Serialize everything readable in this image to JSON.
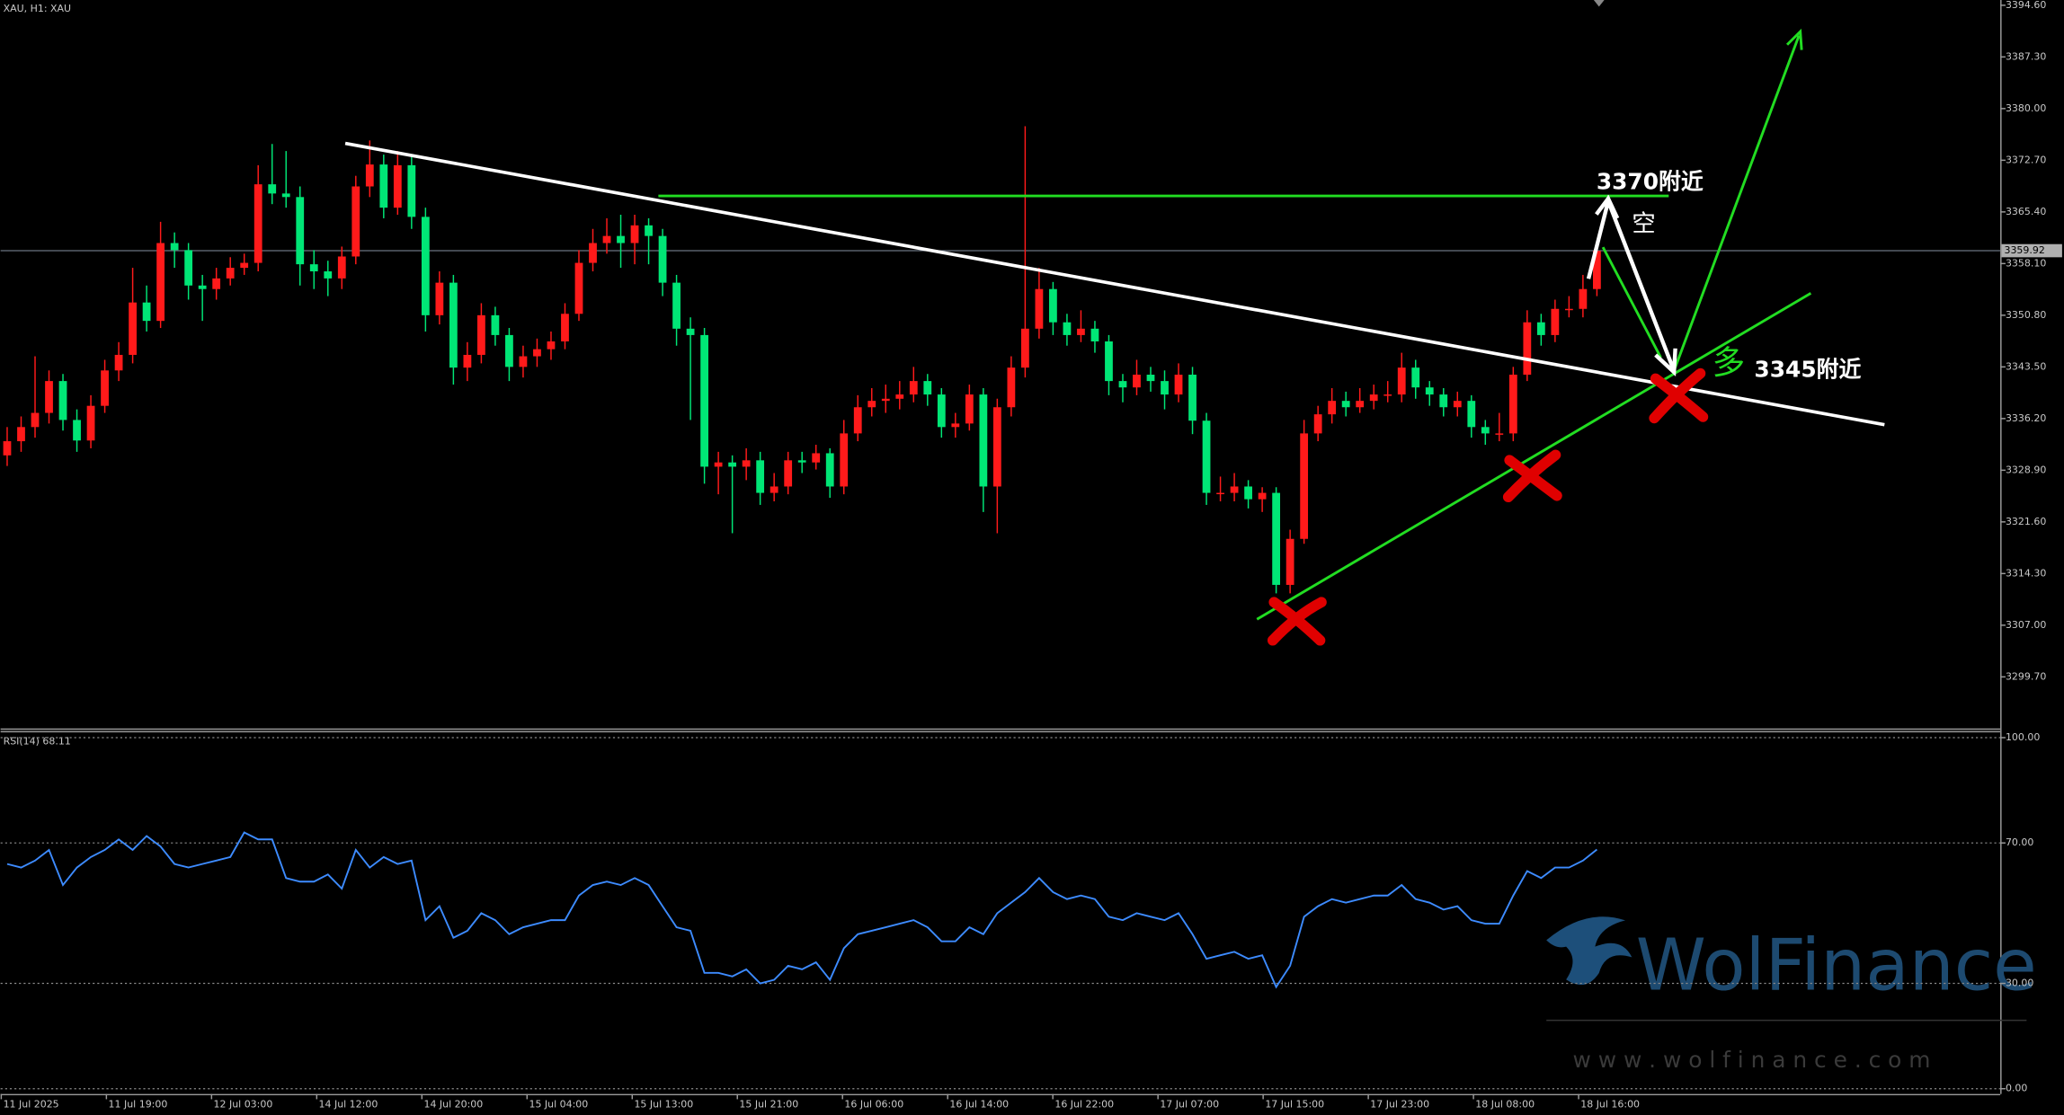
{
  "header": "XAU, H1:  XAU",
  "chart_data": [
    {
      "type": "candlestick",
      "up_color": "#ff1a1a",
      "down_color": "#00e676",
      "ylim": [
        3292.6,
        3394.6
      ],
      "yticks": [
        {
          "value": 3299.7,
          "label": "3299.70"
        },
        {
          "value": 3307.0,
          "label": "3307.00"
        },
        {
          "value": 3314.3,
          "label": "3314.30"
        },
        {
          "value": 3321.6,
          "label": "3321.60"
        },
        {
          "value": 3328.9,
          "label": "3328.90"
        },
        {
          "value": 3336.2,
          "label": "3336.20"
        },
        {
          "value": 3343.5,
          "label": "3343.50"
        },
        {
          "value": 3350.8,
          "label": "3350.80"
        },
        {
          "value": 3358.1,
          "label": "3358.10"
        },
        {
          "value": 3365.4,
          "label": "3365.40"
        },
        {
          "value": 3372.7,
          "label": "3372.70"
        },
        {
          "value": 3380.0,
          "label": "3380.00"
        },
        {
          "value": 3387.3,
          "label": "3387.30"
        },
        {
          "value": 3394.6,
          "label": "3394.60"
        }
      ],
      "last_price": 3359.92,
      "ohlc": [
        [
          3331.0,
          3335.0,
          3329.5,
          3333.0
        ],
        [
          3333.0,
          3336.5,
          3331.5,
          3335.0
        ],
        [
          3335.0,
          3345.0,
          3333.5,
          3337.0
        ],
        [
          3337.0,
          3343.0,
          3335.5,
          3341.5
        ],
        [
          3341.5,
          3342.5,
          3334.5,
          3336.0
        ],
        [
          3336.0,
          3337.5,
          3331.5,
          3333.1
        ],
        [
          3333.1,
          3339.5,
          3332.0,
          3338.0
        ],
        [
          3338.0,
          3344.5,
          3337.0,
          3343.0
        ],
        [
          3343.0,
          3347.0,
          3341.5,
          3345.2
        ],
        [
          3345.2,
          3357.5,
          3344.0,
          3352.6
        ],
        [
          3352.6,
          3355.0,
          3348.5,
          3350.0
        ],
        [
          3350.0,
          3364.0,
          3349.0,
          3361.0
        ],
        [
          3361.0,
          3362.5,
          3357.5,
          3360.0
        ],
        [
          3360.0,
          3361.0,
          3353.0,
          3355.0
        ],
        [
          3355.0,
          3356.5,
          3350.0,
          3354.5
        ],
        [
          3354.5,
          3357.5,
          3353.0,
          3356.0
        ],
        [
          3356.0,
          3359.0,
          3355.0,
          3357.5
        ],
        [
          3357.5,
          3359.5,
          3356.5,
          3358.2
        ],
        [
          3358.2,
          3372.0,
          3357.0,
          3369.3
        ],
        [
          3369.3,
          3375.0,
          3366.5,
          3368.0
        ],
        [
          3368.0,
          3374.0,
          3366.0,
          3367.5
        ],
        [
          3367.5,
          3369.0,
          3355.0,
          3358.0
        ],
        [
          3358.0,
          3360.0,
          3354.5,
          3357.0
        ],
        [
          3357.0,
          3358.5,
          3353.5,
          3356.0
        ],
        [
          3356.0,
          3360.5,
          3354.5,
          3359.1
        ],
        [
          3359.1,
          3370.5,
          3358.0,
          3369.0
        ],
        [
          3369.0,
          3375.5,
          3367.5,
          3372.1
        ],
        [
          3372.1,
          3373.5,
          3364.5,
          3366.0
        ],
        [
          3366.0,
          3374.0,
          3365.0,
          3372.0
        ],
        [
          3372.0,
          3373.5,
          3363.0,
          3364.7
        ],
        [
          3364.7,
          3366.0,
          3348.5,
          3350.8
        ],
        [
          3350.8,
          3357.0,
          3349.5,
          3355.4
        ],
        [
          3355.4,
          3356.5,
          3341.0,
          3343.4
        ],
        [
          3343.4,
          3347.0,
          3341.5,
          3345.2
        ],
        [
          3345.2,
          3352.5,
          3344.0,
          3350.8
        ],
        [
          3350.8,
          3352.0,
          3346.5,
          3348.0
        ],
        [
          3348.0,
          3349.0,
          3341.5,
          3343.5
        ],
        [
          3343.5,
          3346.5,
          3342.0,
          3345.0
        ],
        [
          3345.0,
          3347.5,
          3343.5,
          3346.0
        ],
        [
          3346.0,
          3348.5,
          3344.5,
          3347.1
        ],
        [
          3347.1,
          3352.5,
          3346.0,
          3351.0
        ],
        [
          3351.0,
          3360.0,
          3350.0,
          3358.2
        ],
        [
          3358.2,
          3363.0,
          3357.0,
          3361.0
        ],
        [
          3361.0,
          3364.5,
          3359.5,
          3362.0
        ],
        [
          3362.0,
          3365.0,
          3357.5,
          3361.0
        ],
        [
          3361.0,
          3365.0,
          3358.0,
          3363.5
        ],
        [
          3363.5,
          3364.5,
          3358.0,
          3362.0
        ],
        [
          3362.0,
          3363.0,
          3353.5,
          3355.4
        ],
        [
          3355.4,
          3356.5,
          3346.5,
          3348.9
        ],
        [
          3348.9,
          3350.5,
          3336.0,
          3348.0
        ],
        [
          3348.0,
          3349.0,
          3327.0,
          3329.4
        ],
        [
          3329.4,
          3331.5,
          3325.5,
          3330.0
        ],
        [
          3330.0,
          3331.0,
          3320.0,
          3329.4
        ],
        [
          3329.4,
          3332.0,
          3327.5,
          3330.3
        ],
        [
          3330.3,
          3331.5,
          3324.0,
          3325.7
        ],
        [
          3325.7,
          3328.5,
          3324.5,
          3326.6
        ],
        [
          3326.6,
          3331.5,
          3325.5,
          3330.3
        ],
        [
          3330.3,
          3331.5,
          3328.5,
          3330.0
        ],
        [
          3330.0,
          3332.5,
          3329.0,
          3331.3
        ],
        [
          3331.3,
          3332.0,
          3325.0,
          3326.6
        ],
        [
          3326.6,
          3336.0,
          3325.5,
          3334.1
        ],
        [
          3334.1,
          3339.5,
          3333.0,
          3337.8
        ],
        [
          3337.8,
          3340.5,
          3336.5,
          3338.7
        ],
        [
          3338.7,
          3341.0,
          3337.0,
          3339.0
        ],
        [
          3339.0,
          3341.5,
          3337.5,
          3339.6
        ],
        [
          3339.6,
          3343.5,
          3338.5,
          3341.5
        ],
        [
          3341.5,
          3342.5,
          3338.0,
          3339.6
        ],
        [
          3339.6,
          3340.5,
          3333.5,
          3335.0
        ],
        [
          3335.0,
          3337.0,
          3333.5,
          3335.5
        ],
        [
          3335.5,
          3341.0,
          3334.5,
          3339.6
        ],
        [
          3339.6,
          3340.5,
          3323.0,
          3326.6
        ],
        [
          3326.6,
          3339.0,
          3320.0,
          3337.8
        ],
        [
          3337.8,
          3345.0,
          3336.5,
          3343.4
        ],
        [
          3343.4,
          3377.5,
          3342.0,
          3348.9
        ],
        [
          3348.9,
          3357.5,
          3347.5,
          3354.5
        ],
        [
          3354.5,
          3355.5,
          3348.0,
          3349.8
        ],
        [
          3349.8,
          3351.0,
          3346.5,
          3348.0
        ],
        [
          3348.0,
          3351.5,
          3347.0,
          3348.9
        ],
        [
          3348.9,
          3350.0,
          3345.5,
          3347.1
        ],
        [
          3347.1,
          3348.0,
          3339.5,
          3341.5
        ],
        [
          3341.5,
          3342.5,
          3338.5,
          3340.6
        ],
        [
          3340.6,
          3344.5,
          3339.5,
          3342.4
        ],
        [
          3342.4,
          3343.5,
          3340.0,
          3341.5
        ],
        [
          3341.5,
          3343.0,
          3337.5,
          3339.6
        ],
        [
          3339.6,
          3344.0,
          3338.5,
          3342.4
        ],
        [
          3342.4,
          3343.5,
          3334.0,
          3335.9
        ],
        [
          3335.9,
          3337.0,
          3324.0,
          3325.7
        ],
        [
          3325.7,
          3328.0,
          3324.5,
          3325.7
        ],
        [
          3325.7,
          3328.5,
          3324.5,
          3326.6
        ],
        [
          3326.6,
          3327.5,
          3323.5,
          3324.8
        ],
        [
          3324.8,
          3326.5,
          3323.0,
          3325.7
        ],
        [
          3325.7,
          3326.5,
          3311.5,
          3312.7
        ],
        [
          3312.7,
          3320.5,
          3311.5,
          3319.2
        ],
        [
          3319.2,
          3336.0,
          3318.5,
          3334.1
        ],
        [
          3334.1,
          3338.0,
          3333.0,
          3336.8
        ],
        [
          3336.8,
          3340.5,
          3335.5,
          3338.7
        ],
        [
          3338.7,
          3340.0,
          3336.5,
          3337.8
        ],
        [
          3337.8,
          3340.5,
          3337.0,
          3338.7
        ],
        [
          3338.7,
          3341.0,
          3337.5,
          3339.6
        ],
        [
          3339.6,
          3341.5,
          3338.5,
          3339.6
        ],
        [
          3339.6,
          3345.5,
          3338.5,
          3343.4
        ],
        [
          3343.4,
          3344.5,
          3339.0,
          3340.6
        ],
        [
          3340.6,
          3341.5,
          3338.0,
          3339.6
        ],
        [
          3339.6,
          3340.5,
          3336.5,
          3337.8
        ],
        [
          3337.8,
          3340.0,
          3336.5,
          3338.7
        ],
        [
          3338.7,
          3339.5,
          3333.5,
          3335.0
        ],
        [
          3335.0,
          3336.0,
          3332.5,
          3334.1
        ],
        [
          3334.1,
          3337.0,
          3333.0,
          3334.1
        ],
        [
          3334.1,
          3343.5,
          3333.0,
          3342.4
        ],
        [
          3342.4,
          3351.5,
          3341.5,
          3349.8
        ],
        [
          3349.8,
          3351.0,
          3346.5,
          3348.0
        ],
        [
          3348.0,
          3353.0,
          3347.0,
          3351.7
        ],
        [
          3351.7,
          3353.5,
          3350.5,
          3351.7
        ],
        [
          3351.7,
          3356.5,
          3350.5,
          3354.5
        ],
        [
          3354.5,
          3361.0,
          3353.5,
          3359.9
        ]
      ],
      "x_labels": [
        "11 Jul 2025",
        "11 Jul 19:00",
        "12 Jul 03:00",
        "14 Jul 12:00",
        "14 Jul 20:00",
        "15 Jul 04:00",
        "15 Jul 13:00",
        "15 Jul 21:00",
        "16 Jul 06:00",
        "16 Jul 14:00",
        "16 Jul 22:00",
        "17 Jul 07:00",
        "17 Jul 15:00",
        "17 Jul 23:00",
        "18 Jul 08:00",
        "18 Jul 16:00"
      ],
      "annotations": [
        "3370附近",
        "空",
        "多",
        "3345附近"
      ]
    },
    {
      "type": "line",
      "title": "RSI(14) 68.11",
      "color": "#3d8bff",
      "ylim": [
        0,
        100
      ],
      "yticks": [
        {
          "value": 0,
          "label": "0.00"
        },
        {
          "value": 30,
          "label": "30.00"
        },
        {
          "value": 70,
          "label": "70.00"
        },
        {
          "value": 100,
          "label": "100.00"
        }
      ],
      "values": [
        64,
        63,
        65,
        68,
        58,
        63,
        66,
        68,
        71,
        68,
        72,
        69,
        64,
        63,
        64,
        65,
        66,
        73,
        71,
        71,
        60,
        59,
        59,
        61,
        57,
        68,
        63,
        66,
        64,
        65,
        48,
        52,
        43,
        45,
        50,
        48,
        44,
        46,
        47,
        48,
        48,
        55,
        58,
        59,
        58,
        60,
        58,
        52,
        46,
        45,
        33,
        33,
        32,
        34,
        30,
        31,
        35,
        34,
        36,
        31,
        40,
        44,
        45,
        46,
        47,
        48,
        46,
        42,
        42,
        46,
        44,
        50,
        53,
        56,
        60,
        56,
        54,
        55,
        54,
        49,
        48,
        50,
        49,
        48,
        50,
        44,
        37,
        38,
        39,
        37,
        38,
        29,
        35,
        49,
        52,
        54,
        53,
        54,
        55,
        55,
        58,
        54,
        53,
        51,
        52,
        48,
        47,
        47,
        55,
        62,
        60,
        63,
        63,
        65,
        68.11
      ]
    }
  ],
  "watermark": {
    "name": "WolFinance",
    "url": "w w w . w o l f i n a n c e . c o m"
  }
}
